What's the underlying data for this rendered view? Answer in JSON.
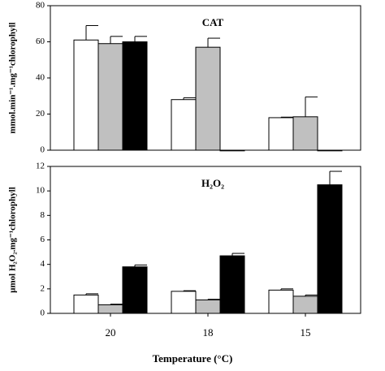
{
  "chart_data": [
    {
      "type": "bar",
      "title": "CAT",
      "ylabel": "mmol.min⁻¹.mg⁻¹chlorophyll",
      "categories": [
        null,
        null,
        null
      ],
      "series": [
        {
          "color": "#ffffff",
          "values": [
            61,
            28,
            18
          ],
          "errors": [
            8,
            1,
            0.3
          ]
        },
        {
          "color": "#c0c0c0",
          "values": [
            59,
            57,
            18.5
          ],
          "errors": [
            4,
            5,
            11
          ]
        },
        {
          "color": "#000000",
          "values": [
            60,
            0,
            0
          ],
          "errors": [
            3,
            0,
            0
          ]
        }
      ],
      "ylim": [
        0,
        80
      ],
      "yticks": [
        0,
        20,
        40,
        60,
        80
      ]
    },
    {
      "type": "bar",
      "title": "H₂O₂",
      "ylabel": "μmol H₂O₂.mg⁻¹chlorophyll",
      "xlabel": "Temperature (°C)",
      "categories": [
        "20",
        "18",
        "15"
      ],
      "series": [
        {
          "color": "#ffffff",
          "values": [
            1.5,
            1.8,
            1.9
          ],
          "errors": [
            0.1,
            0.05,
            0.1
          ]
        },
        {
          "color": "#c0c0c0",
          "values": [
            0.7,
            1.1,
            1.4
          ],
          "errors": [
            0.05,
            0.05,
            0.1
          ]
        },
        {
          "color": "#000000",
          "values": [
            3.8,
            4.7,
            10.5
          ],
          "errors": [
            0.15,
            0.2,
            1.1
          ]
        }
      ],
      "ylim": [
        0,
        12
      ],
      "yticks": [
        0,
        2,
        4,
        6,
        8,
        10,
        12
      ]
    }
  ]
}
